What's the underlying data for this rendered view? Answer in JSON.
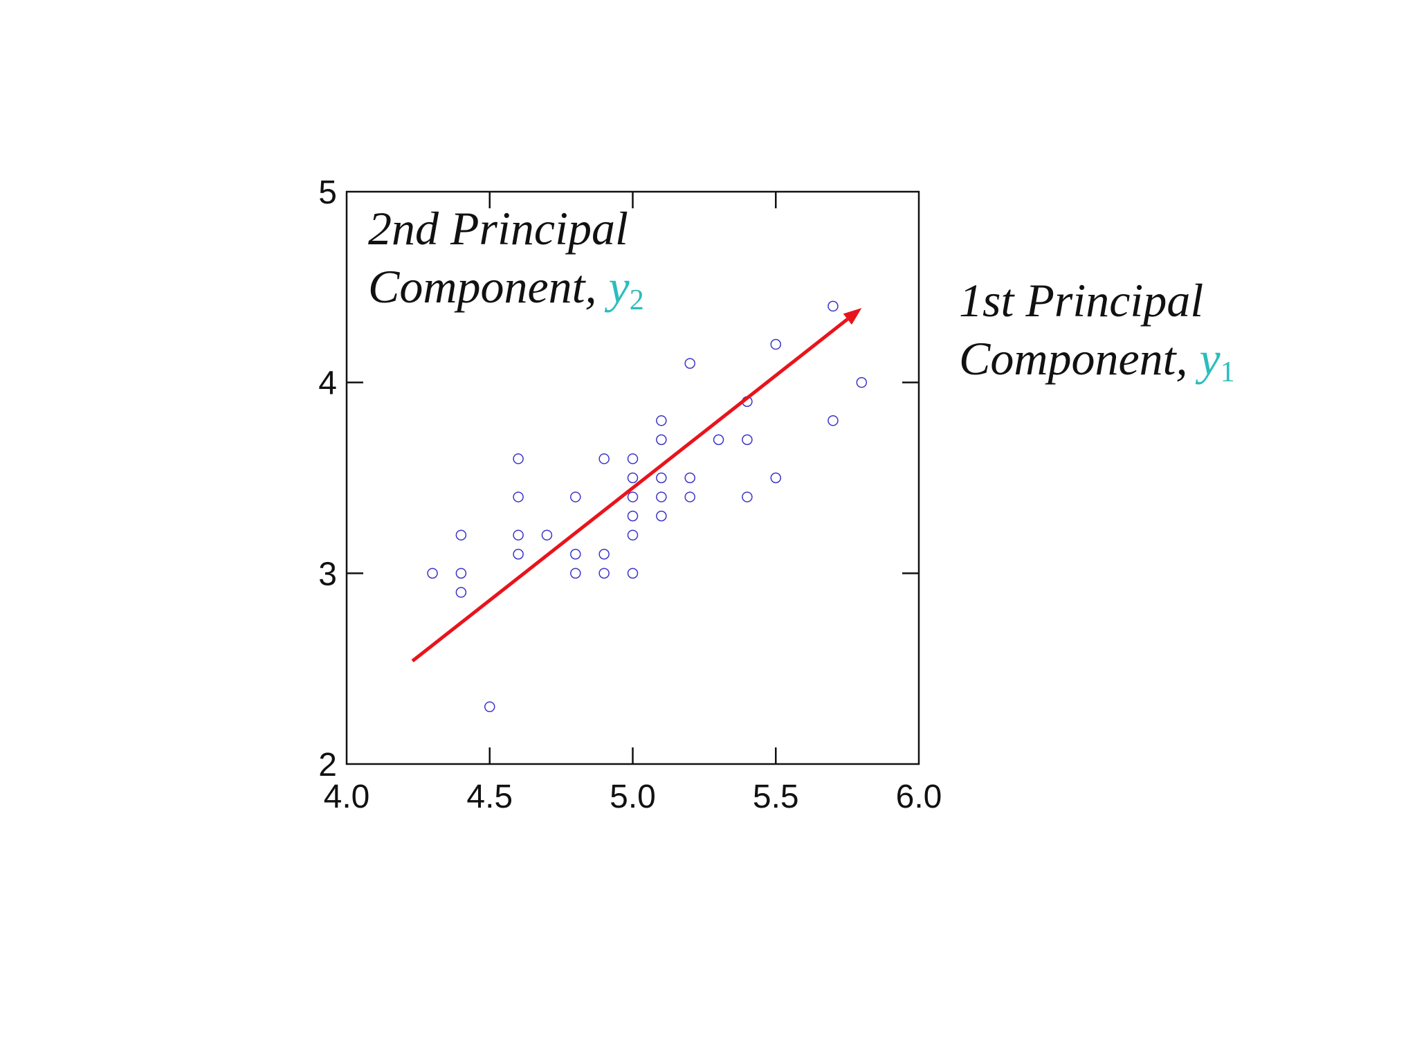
{
  "chart_data": {
    "type": "scatter",
    "xlim": [
      4.0,
      6.0
    ],
    "ylim": [
      2,
      5
    ],
    "x_ticks": [
      "4.0",
      "4.5",
      "5.0",
      "5.5",
      "6.0"
    ],
    "y_ticks": [
      "2",
      "3",
      "4",
      "5"
    ],
    "grid": false,
    "marker": "open-circle",
    "point_color": "#3a33c8",
    "points": [
      [
        4.3,
        3.0
      ],
      [
        4.4,
        3.2
      ],
      [
        4.4,
        3.0
      ],
      [
        4.4,
        2.9
      ],
      [
        4.5,
        2.3
      ],
      [
        4.6,
        3.6
      ],
      [
        4.6,
        3.4
      ],
      [
        4.6,
        3.2
      ],
      [
        4.6,
        3.1
      ],
      [
        4.7,
        3.2
      ],
      [
        4.8,
        3.4
      ],
      [
        4.8,
        3.1
      ],
      [
        4.8,
        3.0
      ],
      [
        4.9,
        3.6
      ],
      [
        4.9,
        3.1
      ],
      [
        4.9,
        3.0
      ],
      [
        5.0,
        3.6
      ],
      [
        5.0,
        3.5
      ],
      [
        5.0,
        3.4
      ],
      [
        5.0,
        3.3
      ],
      [
        5.0,
        3.2
      ],
      [
        5.0,
        3.0
      ],
      [
        5.1,
        3.8
      ],
      [
        5.1,
        3.7
      ],
      [
        5.1,
        3.5
      ],
      [
        5.1,
        3.4
      ],
      [
        5.1,
        3.3
      ],
      [
        5.2,
        4.1
      ],
      [
        5.2,
        3.5
      ],
      [
        5.2,
        3.4
      ],
      [
        5.3,
        3.7
      ],
      [
        5.4,
        3.9
      ],
      [
        5.4,
        3.7
      ],
      [
        5.4,
        3.4
      ],
      [
        5.5,
        4.2
      ],
      [
        5.5,
        3.5
      ],
      [
        5.7,
        4.4
      ],
      [
        5.7,
        3.8
      ],
      [
        5.8,
        4.0
      ]
    ],
    "arrow": {
      "from": [
        4.23,
        2.54
      ],
      "to": [
        5.8,
        4.39
      ],
      "color": "#e8141c"
    },
    "annotations": {
      "pc2": {
        "text": "2nd Principal",
        "text2": "Component, ",
        "symbol": "y",
        "subscript": "2"
      },
      "pc1": {
        "text": "1st Principal",
        "text2": "Component, ",
        "symbol": "y",
        "subscript": "1"
      }
    },
    "symbol_color": "#2bbdbd"
  }
}
